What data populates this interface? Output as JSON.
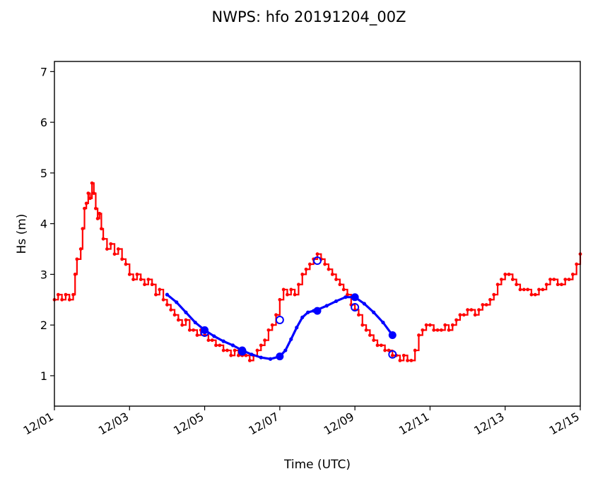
{
  "chart_data": {
    "type": "line",
    "title": "NWPS: hfo 20191204_00Z",
    "xlabel": "Time (UTC)",
    "ylabel": "Hs (m)",
    "xlim": [
      0,
      14
    ],
    "ylim": [
      0.4,
      7.2
    ],
    "x_unit": "days from 12/01 00Z",
    "x_ticks": [
      0,
      2,
      4,
      6,
      8,
      10,
      12,
      14
    ],
    "x_tick_labels": [
      "12/01",
      "12/03",
      "12/05",
      "12/07",
      "12/09",
      "12/11",
      "12/13",
      "12/15"
    ],
    "y_ticks": [
      1,
      2,
      3,
      4,
      5,
      6,
      7
    ],
    "y_tick_labels": [
      "1",
      "2",
      "3",
      "4",
      "5",
      "6",
      "7"
    ],
    "grid": false,
    "series": [
      {
        "color": "#ff0000",
        "style": "step-line-with-points",
        "points": [
          [
            0.0,
            2.5
          ],
          [
            0.1,
            2.6
          ],
          [
            0.2,
            2.5
          ],
          [
            0.3,
            2.6
          ],
          [
            0.4,
            2.5
          ],
          [
            0.5,
            2.6
          ],
          [
            0.55,
            3.0
          ],
          [
            0.6,
            3.3
          ],
          [
            0.7,
            3.5
          ],
          [
            0.75,
            3.9
          ],
          [
            0.8,
            4.3
          ],
          [
            0.85,
            4.4
          ],
          [
            0.9,
            4.6
          ],
          [
            0.95,
            4.5
          ],
          [
            1.0,
            4.8
          ],
          [
            1.05,
            4.6
          ],
          [
            1.1,
            4.3
          ],
          [
            1.15,
            4.1
          ],
          [
            1.2,
            4.2
          ],
          [
            1.25,
            3.9
          ],
          [
            1.3,
            3.7
          ],
          [
            1.4,
            3.5
          ],
          [
            1.5,
            3.6
          ],
          [
            1.6,
            3.4
          ],
          [
            1.7,
            3.5
          ],
          [
            1.8,
            3.3
          ],
          [
            1.9,
            3.2
          ],
          [
            2.0,
            3.0
          ],
          [
            2.1,
            2.9
          ],
          [
            2.2,
            3.0
          ],
          [
            2.3,
            2.9
          ],
          [
            2.4,
            2.8
          ],
          [
            2.5,
            2.9
          ],
          [
            2.6,
            2.8
          ],
          [
            2.7,
            2.6
          ],
          [
            2.8,
            2.7
          ],
          [
            2.9,
            2.5
          ],
          [
            3.0,
            2.4
          ],
          [
            3.1,
            2.3
          ],
          [
            3.2,
            2.2
          ],
          [
            3.3,
            2.1
          ],
          [
            3.4,
            2.0
          ],
          [
            3.5,
            2.1
          ],
          [
            3.6,
            1.9
          ],
          [
            3.7,
            1.9
          ],
          [
            3.8,
            1.8
          ],
          [
            3.9,
            1.9
          ],
          [
            4.0,
            1.8
          ],
          [
            4.1,
            1.7
          ],
          [
            4.2,
            1.7
          ],
          [
            4.3,
            1.6
          ],
          [
            4.4,
            1.6
          ],
          [
            4.5,
            1.5
          ],
          [
            4.6,
            1.5
          ],
          [
            4.7,
            1.4
          ],
          [
            4.8,
            1.5
          ],
          [
            4.9,
            1.4
          ],
          [
            5.0,
            1.4
          ],
          [
            5.1,
            1.4
          ],
          [
            5.2,
            1.3
          ],
          [
            5.3,
            1.4
          ],
          [
            5.4,
            1.5
          ],
          [
            5.5,
            1.6
          ],
          [
            5.6,
            1.7
          ],
          [
            5.7,
            1.9
          ],
          [
            5.8,
            2.0
          ],
          [
            5.9,
            2.2
          ],
          [
            6.0,
            2.5
          ],
          [
            6.1,
            2.7
          ],
          [
            6.2,
            2.6
          ],
          [
            6.3,
            2.7
          ],
          [
            6.4,
            2.6
          ],
          [
            6.5,
            2.8
          ],
          [
            6.6,
            3.0
          ],
          [
            6.7,
            3.1
          ],
          [
            6.8,
            3.2
          ],
          [
            6.9,
            3.3
          ],
          [
            7.0,
            3.4
          ],
          [
            7.1,
            3.3
          ],
          [
            7.2,
            3.2
          ],
          [
            7.3,
            3.1
          ],
          [
            7.4,
            3.0
          ],
          [
            7.5,
            2.9
          ],
          [
            7.6,
            2.8
          ],
          [
            7.7,
            2.7
          ],
          [
            7.8,
            2.6
          ],
          [
            7.9,
            2.4
          ],
          [
            8.0,
            2.3
          ],
          [
            8.1,
            2.2
          ],
          [
            8.2,
            2.0
          ],
          [
            8.3,
            1.9
          ],
          [
            8.4,
            1.8
          ],
          [
            8.5,
            1.7
          ],
          [
            8.6,
            1.6
          ],
          [
            8.7,
            1.6
          ],
          [
            8.8,
            1.5
          ],
          [
            8.9,
            1.5
          ],
          [
            9.0,
            1.4
          ],
          [
            9.1,
            1.4
          ],
          [
            9.2,
            1.3
          ],
          [
            9.3,
            1.4
          ],
          [
            9.4,
            1.3
          ],
          [
            9.5,
            1.3
          ],
          [
            9.6,
            1.5
          ],
          [
            9.7,
            1.8
          ],
          [
            9.8,
            1.9
          ],
          [
            9.9,
            2.0
          ],
          [
            10.0,
            2.0
          ],
          [
            10.1,
            1.9
          ],
          [
            10.2,
            1.9
          ],
          [
            10.3,
            1.9
          ],
          [
            10.4,
            2.0
          ],
          [
            10.5,
            1.9
          ],
          [
            10.6,
            2.0
          ],
          [
            10.7,
            2.1
          ],
          [
            10.8,
            2.2
          ],
          [
            10.9,
            2.2
          ],
          [
            11.0,
            2.3
          ],
          [
            11.1,
            2.3
          ],
          [
            11.2,
            2.2
          ],
          [
            11.3,
            2.3
          ],
          [
            11.4,
            2.4
          ],
          [
            11.5,
            2.4
          ],
          [
            11.6,
            2.5
          ],
          [
            11.7,
            2.6
          ],
          [
            11.8,
            2.8
          ],
          [
            11.9,
            2.9
          ],
          [
            12.0,
            3.0
          ],
          [
            12.1,
            3.0
          ],
          [
            12.2,
            2.9
          ],
          [
            12.3,
            2.8
          ],
          [
            12.4,
            2.7
          ],
          [
            12.5,
            2.7
          ],
          [
            12.6,
            2.7
          ],
          [
            12.7,
            2.6
          ],
          [
            12.8,
            2.6
          ],
          [
            12.9,
            2.7
          ],
          [
            13.0,
            2.7
          ],
          [
            13.1,
            2.8
          ],
          [
            13.2,
            2.9
          ],
          [
            13.3,
            2.9
          ],
          [
            13.4,
            2.8
          ],
          [
            13.5,
            2.8
          ],
          [
            13.6,
            2.9
          ],
          [
            13.7,
            2.9
          ],
          [
            13.8,
            3.0
          ],
          [
            13.9,
            3.2
          ],
          [
            14.0,
            3.4
          ]
        ]
      },
      {
        "color": "#0000ff",
        "style": "line",
        "points": [
          [
            3.0,
            2.6
          ],
          [
            3.25,
            2.45
          ],
          [
            3.5,
            2.25
          ],
          [
            3.75,
            2.05
          ],
          [
            4.0,
            1.9
          ],
          [
            4.25,
            1.78
          ],
          [
            4.5,
            1.68
          ],
          [
            4.75,
            1.6
          ],
          [
            5.0,
            1.5
          ],
          [
            5.25,
            1.42
          ],
          [
            5.5,
            1.36
          ],
          [
            5.75,
            1.33
          ],
          [
            6.0,
            1.38
          ],
          [
            6.15,
            1.5
          ],
          [
            6.3,
            1.72
          ],
          [
            6.45,
            1.95
          ],
          [
            6.6,
            2.15
          ],
          [
            6.75,
            2.25
          ],
          [
            6.9,
            2.28
          ],
          [
            7.0,
            2.3
          ],
          [
            7.25,
            2.38
          ],
          [
            7.5,
            2.47
          ],
          [
            7.75,
            2.55
          ],
          [
            8.0,
            2.55
          ],
          [
            8.25,
            2.42
          ],
          [
            8.5,
            2.25
          ],
          [
            8.75,
            2.05
          ],
          [
            9.0,
            1.8
          ]
        ]
      }
    ],
    "markers": [
      {
        "color": "#0000ff",
        "style": "open-circle",
        "points": [
          [
            4.0,
            1.85
          ],
          [
            5.0,
            1.48
          ],
          [
            6.0,
            2.1
          ],
          [
            7.0,
            3.27
          ],
          [
            8.0,
            2.35
          ],
          [
            9.0,
            1.42
          ]
        ]
      },
      {
        "color": "#0000ff",
        "style": "filled-circle",
        "points": [
          [
            4.0,
            1.9
          ],
          [
            5.0,
            1.5
          ],
          [
            6.0,
            1.38
          ],
          [
            7.0,
            2.28
          ],
          [
            8.0,
            2.55
          ],
          [
            9.0,
            1.8
          ]
        ]
      }
    ]
  }
}
